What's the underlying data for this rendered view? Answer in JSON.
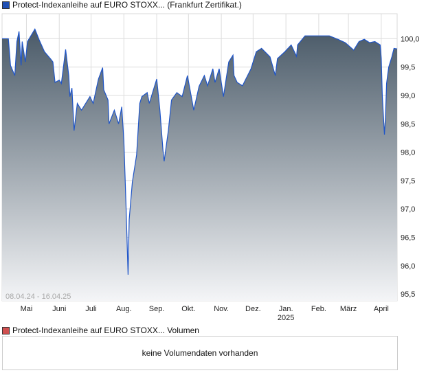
{
  "legend": {
    "price_label": "Protect-Indexanleihe auf EURO STOXX... (Frankfurt Zertifikat.)",
    "price_color": "#1f4fb4",
    "volume_label": "Protect-Indexanleihe auf EURO STOXX... Volumen",
    "volume_color": "#d05050"
  },
  "volume": {
    "message": "keine Volumendaten vorhanden"
  },
  "chart_data": {
    "type": "area",
    "date_range_label": "08.04.24 - 16.04.25",
    "x_range": [
      "2024-04-08",
      "2025-04-16"
    ],
    "ylim": [
      95.38,
      100.44
    ],
    "y_ticks": [
      95.5,
      96.0,
      96.5,
      97.0,
      97.5,
      98.0,
      98.5,
      99.0,
      99.5,
      100.0
    ],
    "y_tick_labels": [
      "95,5",
      "96,0",
      "96,5",
      "97,0",
      "97,5",
      "98,0",
      "98,5",
      "99,0",
      "99,5",
      "100,0"
    ],
    "x_ticks": [
      {
        "date": "2024-05-01",
        "label": "Mai"
      },
      {
        "date": "2024-06-01",
        "label": "Juni"
      },
      {
        "date": "2024-07-01",
        "label": "Juli"
      },
      {
        "date": "2024-08-01",
        "label": "Aug."
      },
      {
        "date": "2024-09-01",
        "label": "Sep."
      },
      {
        "date": "2024-10-01",
        "label": "Okt."
      },
      {
        "date": "2024-11-01",
        "label": "Nov."
      },
      {
        "date": "2024-12-01",
        "label": "Dez."
      },
      {
        "date": "2025-01-01",
        "label": "Jan.",
        "sub": "2025"
      },
      {
        "date": "2025-02-01",
        "label": "Feb."
      },
      {
        "date": "2025-03-01",
        "label": "März"
      },
      {
        "date": "2025-04-01",
        "label": "April"
      }
    ],
    "grid": true,
    "line_color": "#1f55c8",
    "fill_top_color": "#4a5a68",
    "fill_bottom_color": "#f4f5f7",
    "points": [
      [
        "2024-04-08",
        100.0
      ],
      [
        "2024-04-14",
        100.0
      ],
      [
        "2024-04-16",
        99.53
      ],
      [
        "2024-04-20",
        99.35
      ],
      [
        "2024-04-22",
        99.95
      ],
      [
        "2024-04-24",
        100.13
      ],
      [
        "2024-04-26",
        99.53
      ],
      [
        "2024-04-27",
        99.95
      ],
      [
        "2024-04-30",
        99.59
      ],
      [
        "2024-05-02",
        99.95
      ],
      [
        "2024-05-09",
        100.17
      ],
      [
        "2024-05-13",
        99.98
      ],
      [
        "2024-05-18",
        99.77
      ],
      [
        "2024-05-24",
        99.64
      ],
      [
        "2024-05-26",
        99.59
      ],
      [
        "2024-05-28",
        99.23
      ],
      [
        "2024-06-01",
        99.27
      ],
      [
        "2024-06-03",
        99.21
      ],
      [
        "2024-06-07",
        99.81
      ],
      [
        "2024-06-10",
        99.35
      ],
      [
        "2024-06-11",
        98.98
      ],
      [
        "2024-06-13",
        99.13
      ],
      [
        "2024-06-15",
        98.38
      ],
      [
        "2024-06-18",
        98.86
      ],
      [
        "2024-06-22",
        98.74
      ],
      [
        "2024-06-30",
        98.98
      ],
      [
        "2024-07-03",
        98.86
      ],
      [
        "2024-07-08",
        99.29
      ],
      [
        "2024-07-12",
        99.49
      ],
      [
        "2024-07-13",
        99.1
      ],
      [
        "2024-07-17",
        98.92
      ],
      [
        "2024-07-18",
        98.5
      ],
      [
        "2024-07-23",
        98.74
      ],
      [
        "2024-07-27",
        98.5
      ],
      [
        "2024-07-30",
        98.8
      ],
      [
        "2024-08-01",
        98.2
      ],
      [
        "2024-08-03",
        97.06
      ],
      [
        "2024-08-05",
        95.84
      ],
      [
        "2024-08-06",
        96.81
      ],
      [
        "2024-08-09",
        97.47
      ],
      [
        "2024-08-13",
        97.95
      ],
      [
        "2024-08-16",
        98.86
      ],
      [
        "2024-08-18",
        98.98
      ],
      [
        "2024-08-23",
        99.05
      ],
      [
        "2024-08-25",
        98.86
      ],
      [
        "2024-09-01",
        99.29
      ],
      [
        "2024-09-04",
        98.74
      ],
      [
        "2024-09-07",
        98.02
      ],
      [
        "2024-09-08",
        97.84
      ],
      [
        "2024-09-12",
        98.38
      ],
      [
        "2024-09-15",
        98.92
      ],
      [
        "2024-09-20",
        99.05
      ],
      [
        "2024-09-25",
        98.98
      ],
      [
        "2024-09-30",
        99.35
      ],
      [
        "2024-10-06",
        98.74
      ],
      [
        "2024-10-11",
        99.16
      ],
      [
        "2024-10-16",
        99.35
      ],
      [
        "2024-10-19",
        99.17
      ],
      [
        "2024-10-24",
        99.47
      ],
      [
        "2024-10-26",
        99.23
      ],
      [
        "2024-10-30",
        99.47
      ],
      [
        "2024-11-03",
        98.98
      ],
      [
        "2024-11-08",
        99.59
      ],
      [
        "2024-11-12",
        99.71
      ],
      [
        "2024-11-13",
        99.35
      ],
      [
        "2024-11-16",
        99.23
      ],
      [
        "2024-11-21",
        99.17
      ],
      [
        "2024-11-29",
        99.47
      ],
      [
        "2024-12-04",
        99.77
      ],
      [
        "2024-12-09",
        99.83
      ],
      [
        "2024-12-17",
        99.68
      ],
      [
        "2024-12-22",
        99.35
      ],
      [
        "2024-12-24",
        99.65
      ],
      [
        "2024-12-31",
        99.77
      ],
      [
        "2025-01-06",
        99.89
      ],
      [
        "2025-01-11",
        99.69
      ],
      [
        "2025-01-12",
        99.89
      ],
      [
        "2025-01-19",
        100.05
      ],
      [
        "2025-01-26",
        100.05
      ],
      [
        "2025-02-03",
        100.05
      ],
      [
        "2025-02-11",
        100.05
      ],
      [
        "2025-02-19",
        99.99
      ],
      [
        "2025-02-26",
        99.93
      ],
      [
        "2025-03-06",
        99.8
      ],
      [
        "2025-03-11",
        99.95
      ],
      [
        "2025-03-16",
        99.99
      ],
      [
        "2025-03-21",
        99.93
      ],
      [
        "2025-03-26",
        99.95
      ],
      [
        "2025-03-31",
        99.89
      ],
      [
        "2025-04-01",
        99.65
      ],
      [
        "2025-04-02",
        99.0
      ],
      [
        "2025-04-04",
        98.31
      ],
      [
        "2025-04-05",
        98.61
      ],
      [
        "2025-04-06",
        99.21
      ],
      [
        "2025-04-08",
        99.5
      ],
      [
        "2025-04-11",
        99.68
      ],
      [
        "2025-04-13",
        99.83
      ],
      [
        "2025-04-16",
        99.82
      ]
    ]
  }
}
